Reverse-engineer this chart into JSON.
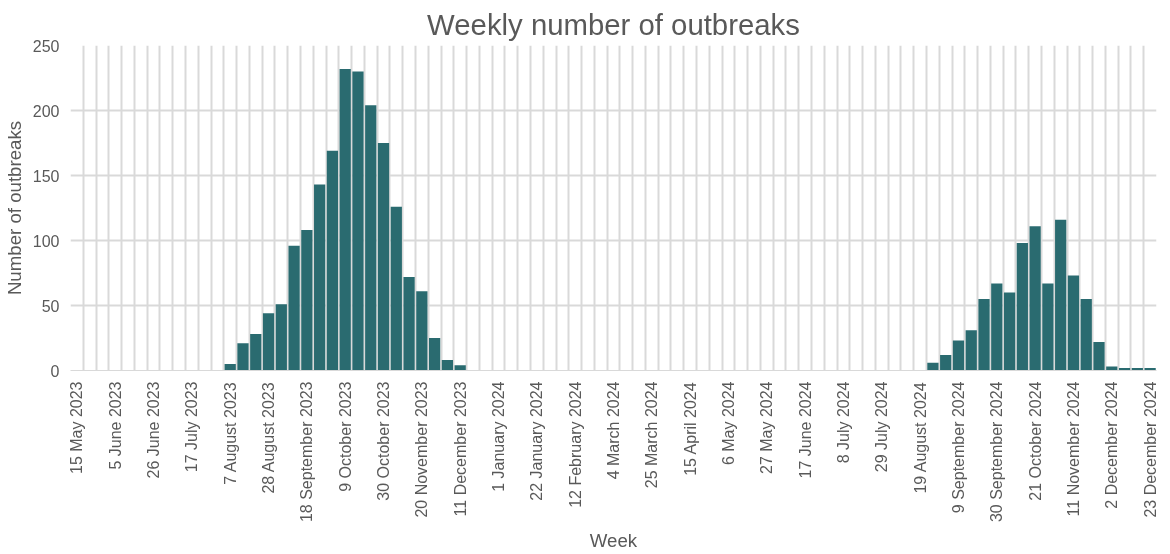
{
  "chart_data": {
    "type": "bar",
    "title": "Weekly number of outbreaks",
    "xlabel": "Week",
    "ylabel": "Number of outbreaks",
    "categories": [
      "15 May 2023",
      null,
      null,
      "5 June 2023",
      null,
      null,
      "26 June 2023",
      null,
      null,
      "17 July 2023",
      null,
      null,
      "7 August 2023",
      null,
      null,
      "28 August 2023",
      null,
      null,
      "18 September 2023",
      null,
      null,
      "9 October 2023",
      null,
      null,
      "30 October 2023",
      null,
      null,
      "20 November 2023",
      null,
      null,
      "11 December 2023",
      null,
      null,
      "1 January 2024",
      null,
      null,
      "22 January 2024",
      null,
      null,
      "12 February 2024",
      null,
      null,
      "4 March 2024",
      null,
      null,
      "25 March 2024",
      null,
      null,
      "15 April 2024",
      null,
      null,
      "6 May 2024",
      null,
      null,
      "27 May 2024",
      null,
      null,
      "17 June 2024",
      null,
      null,
      "8 July 2024",
      null,
      null,
      "29 July 2024",
      null,
      null,
      "19 August 2024",
      null,
      null,
      "9 September 2024",
      null,
      null,
      "30 September 2024",
      null,
      null,
      "21 October 2024",
      null,
      null,
      "11 November 2024",
      null,
      null,
      "2 December 2024",
      null,
      null,
      "23 December 2024"
    ],
    "values": [
      0,
      0,
      0,
      0,
      0,
      0,
      0,
      0,
      0,
      0,
      0,
      0,
      5,
      21,
      28,
      44,
      51,
      96,
      108,
      143,
      169,
      232,
      230,
      204,
      175,
      126,
      72,
      61,
      25,
      8,
      4,
      0,
      0,
      0,
      0,
      0,
      0,
      0,
      0,
      0,
      0,
      0,
      0,
      0,
      0,
      0,
      0,
      0,
      0,
      0,
      0,
      0,
      0,
      0,
      0,
      0,
      0,
      0,
      0,
      0,
      0,
      0,
      0,
      0,
      0,
      0,
      0,
      6,
      12,
      23,
      31,
      55,
      67,
      60,
      98,
      111,
      67,
      116,
      73,
      55,
      22,
      3,
      2,
      2,
      2
    ],
    "color": "#2a6b70",
    "ylim": [
      0,
      250
    ],
    "yticks": [
      0,
      50,
      100,
      150,
      200,
      250
    ],
    "grid": true
  }
}
